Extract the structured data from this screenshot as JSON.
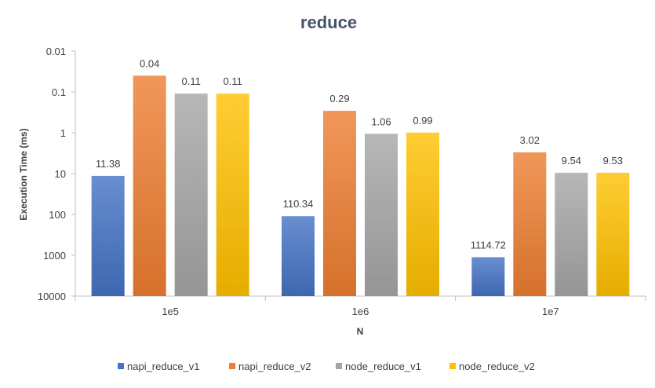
{
  "chart_data": {
    "type": "bar",
    "title": "reduce",
    "xlabel": "N",
    "ylabel": "Execution Time (ms)",
    "yscale": "log",
    "yaxis_inverted": true,
    "ylim": [
      0.01,
      10000
    ],
    "y_ticks": [
      "0.01",
      "0.1",
      "1",
      "10",
      "100",
      "1000",
      "10000"
    ],
    "categories": [
      "1e5",
      "1e6",
      "1e7"
    ],
    "series": [
      {
        "name": "napi_reduce_v1",
        "color": "#4472c4",
        "values": [
          11.38,
          110.34,
          1114.72
        ],
        "labels": [
          "11.38",
          "110.34",
          "1114.72"
        ]
      },
      {
        "name": "napi_reduce_v2",
        "color": "#ed7d31",
        "values": [
          0.04,
          0.29,
          3.02
        ],
        "labels": [
          "0.04",
          "0.29",
          "3.02"
        ]
      },
      {
        "name": "node_reduce_v1",
        "color": "#a5a5a5",
        "values": [
          0.11,
          1.06,
          9.54
        ],
        "labels": [
          "0.11",
          "1.06",
          "9.54"
        ]
      },
      {
        "name": "node_reduce_v2",
        "color": "#ffc000",
        "values": [
          0.11,
          0.99,
          9.53
        ],
        "labels": [
          "0.11",
          "0.99",
          "9.53"
        ]
      }
    ],
    "legend_position": "bottom",
    "grid": false
  }
}
